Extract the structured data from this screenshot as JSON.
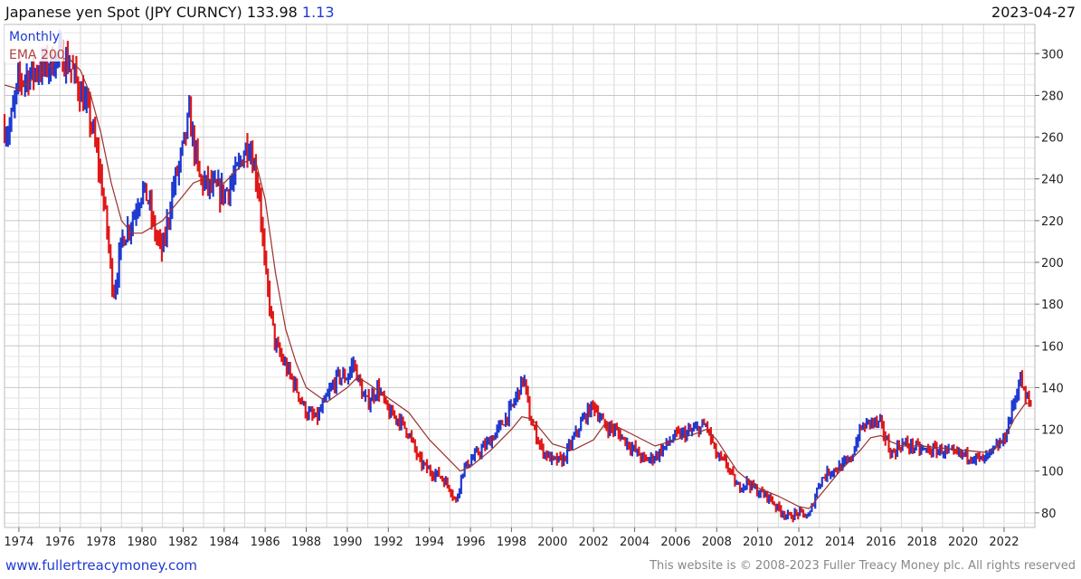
{
  "header": {
    "title": "Japanese yen Spot (JPY CURNCY) 133.98",
    "change": "1.13",
    "date": "2023-04-27"
  },
  "footer": {
    "site": "www.fullertreacymoney.com",
    "copyright": "This website is © 2008-2023 Fuller Treacy Money plc. All rights reserved"
  },
  "colors": {
    "up": "#1f3bd0",
    "down": "#e01818",
    "ema": "#9a3030",
    "grid": "#d8d8d8"
  },
  "chart_data": {
    "type": "line",
    "title": "",
    "xlabel": "",
    "ylabel": "",
    "xlim": [
      1973.3,
      2023.5
    ],
    "ylim": [
      73,
      314
    ],
    "grid": true,
    "y_axis_side": "right",
    "legend_placement": "top-left",
    "x_ticks": [
      "1974",
      "1976",
      "1978",
      "1980",
      "1982",
      "1984",
      "1986",
      "1988",
      "1990",
      "1992",
      "1994",
      "1996",
      "1998",
      "2000",
      "2002",
      "2004",
      "2006",
      "2008",
      "2010",
      "2012",
      "2014",
      "2016",
      "2018",
      "2020",
      "2022"
    ],
    "y_ticks": [
      "80",
      "100",
      "120",
      "140",
      "160",
      "180",
      "200",
      "220",
      "240",
      "260",
      "280",
      "300"
    ],
    "series": [
      {
        "name": "Monthly",
        "style": "price bars",
        "x": [
          1973.3,
          1973.5,
          1974.0,
          1974.5,
          1975.0,
          1975.5,
          1976.0,
          1976.5,
          1977.0,
          1977.5,
          1978.0,
          1978.3,
          1978.6,
          1978.8,
          1979.0,
          1979.5,
          1980.0,
          1980.3,
          1980.6,
          1981.0,
          1981.5,
          1981.9,
          1982.3,
          1982.8,
          1983.0,
          1983.5,
          1984.0,
          1984.5,
          1985.0,
          1985.2,
          1985.7,
          1986.0,
          1986.5,
          1987.0,
          1987.5,
          1988.0,
          1988.5,
          1989.0,
          1989.5,
          1990.0,
          1990.3,
          1990.8,
          1991.0,
          1991.5,
          1992.0,
          1992.5,
          1993.0,
          1993.5,
          1994.0,
          1994.5,
          1995.0,
          1995.3,
          1995.6,
          1996.0,
          1996.5,
          1997.0,
          1997.5,
          1998.0,
          1998.6,
          1998.9,
          1999.5,
          2000.0,
          2000.5,
          2001.0,
          2001.5,
          2002.0,
          2002.5,
          2003.0,
          2003.5,
          2004.0,
          2004.5,
          2005.0,
          2005.5,
          2006.0,
          2006.5,
          2007.0,
          2007.5,
          2008.0,
          2008.5,
          2009.0,
          2009.5,
          2010.0,
          2010.5,
          2011.0,
          2011.5,
          2012.0,
          2012.5,
          2013.0,
          2013.5,
          2014.0,
          2014.5,
          2015.0,
          2015.5,
          2016.0,
          2016.5,
          2017.0,
          2017.5,
          2018.0,
          2018.5,
          2019.0,
          2019.5,
          2020.0,
          2020.5,
          2021.0,
          2021.5,
          2022.0,
          2022.4,
          2022.8,
          2023.0,
          2023.3
        ],
        "y": [
          265,
          262,
          287,
          290,
          293,
          295,
          300,
          294,
          282,
          268,
          240,
          215,
          185,
          195,
          210,
          220,
          235,
          230,
          215,
          205,
          235,
          250,
          270,
          240,
          238,
          235,
          233,
          240,
          254,
          258,
          235,
          195,
          160,
          150,
          140,
          128,
          125,
          135,
          145,
          145,
          152,
          135,
          133,
          140,
          128,
          125,
          118,
          105,
          100,
          98,
          92,
          85,
          100,
          105,
          110,
          115,
          122,
          130,
          145,
          125,
          110,
          105,
          105,
          115,
          125,
          132,
          122,
          120,
          115,
          110,
          105,
          107,
          112,
          117,
          118,
          120,
          122,
          107,
          103,
          92,
          95,
          90,
          88,
          82,
          78,
          80,
          78,
          95,
          100,
          102,
          105,
          120,
          124,
          122,
          108,
          113,
          112,
          110,
          110,
          110,
          108,
          108,
          107,
          105,
          110,
          115,
          130,
          145,
          135,
          133
        ]
      },
      {
        "name": "EMA 200",
        "style": "line",
        "x": [
          1973.3,
          1974.0,
          1975.0,
          1976.0,
          1976.5,
          1977.0,
          1977.5,
          1978.0,
          1978.5,
          1979.0,
          1979.5,
          1980.0,
          1981.0,
          1982.0,
          1982.5,
          1983.0,
          1984.0,
          1985.0,
          1985.5,
          1986.0,
          1986.5,
          1987.0,
          1987.5,
          1988.0,
          1989.0,
          1990.0,
          1990.5,
          1991.0,
          1992.0,
          1993.0,
          1994.0,
          1995.0,
          1995.5,
          1996.0,
          1997.0,
          1998.0,
          1998.5,
          1999.0,
          2000.0,
          2001.0,
          2002.0,
          2002.5,
          2003.0,
          2004.0,
          2005.0,
          2006.0,
          2007.0,
          2007.5,
          2008.0,
          2009.0,
          2010.0,
          2011.0,
          2012.0,
          2012.5,
          2013.0,
          2014.0,
          2015.0,
          2015.5,
          2016.0,
          2016.5,
          2017.0,
          2018.0,
          2019.0,
          2020.0,
          2021.0,
          2021.5,
          2022.0,
          2022.5,
          2023.0,
          2023.3
        ],
        "y": [
          285,
          283,
          290,
          298,
          297,
          292,
          280,
          262,
          238,
          220,
          214,
          214,
          220,
          232,
          238,
          240,
          238,
          248,
          250,
          230,
          195,
          168,
          152,
          140,
          133,
          140,
          145,
          142,
          135,
          128,
          115,
          105,
          100,
          102,
          110,
          120,
          126,
          125,
          113,
          110,
          115,
          122,
          122,
          117,
          112,
          115,
          118,
          120,
          115,
          100,
          92,
          88,
          83,
          82,
          88,
          100,
          110,
          116,
          117,
          114,
          112,
          112,
          111,
          110,
          109,
          110,
          115,
          125,
          132,
          133
        ]
      }
    ]
  }
}
